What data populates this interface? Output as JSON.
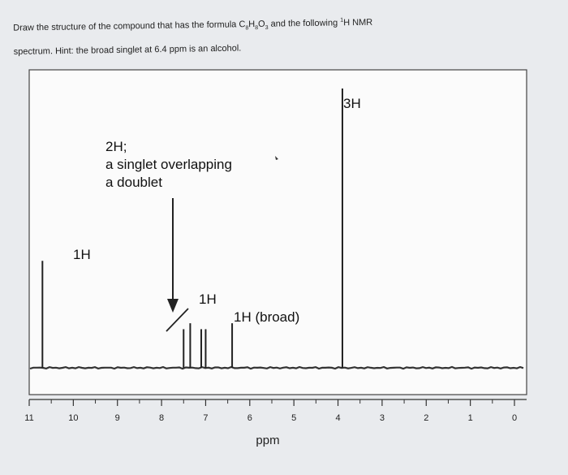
{
  "question": {
    "line1_before": "Draw the structure of the compound that has the formula C",
    "sub1": "8",
    "h": "H",
    "sub2": "8",
    "o": "O",
    "sub3": "3",
    "line1_after": " and the following ",
    "sup": "1",
    "line1_end": "H NMR",
    "line2": "spectrum. Hint: the broad singlet at 6.4 ppm is an alcohol."
  },
  "chart_data": {
    "type": "line",
    "title": "",
    "xlabel": "ppm",
    "ylabel": "",
    "xlim": [
      11,
      0
    ],
    "ylim": [
      0,
      1
    ],
    "x_ticks": [
      "11",
      "10",
      "9",
      "8",
      "7",
      "6",
      "5",
      "4",
      "3",
      "2",
      "1",
      "0"
    ],
    "grid": false,
    "peaks": [
      {
        "ppm": 10.7,
        "height": 0.36,
        "label": "1H"
      },
      {
        "ppm": 7.5,
        "height": 0.13
      },
      {
        "ppm": 7.35,
        "height": 0.15
      },
      {
        "ppm": 7.1,
        "height": 0.13
      },
      {
        "ppm": 7.0,
        "height": 0.13
      },
      {
        "ppm": 6.4,
        "height": 0.15,
        "label": "1H (broad)"
      },
      {
        "ppm": 3.9,
        "height": 0.94,
        "label": "3H"
      }
    ],
    "annotations": {
      "doublet_label": [
        "2H;",
        "a singlet overlapping",
        "a doublet"
      ],
      "one_h_label": "1H"
    }
  }
}
